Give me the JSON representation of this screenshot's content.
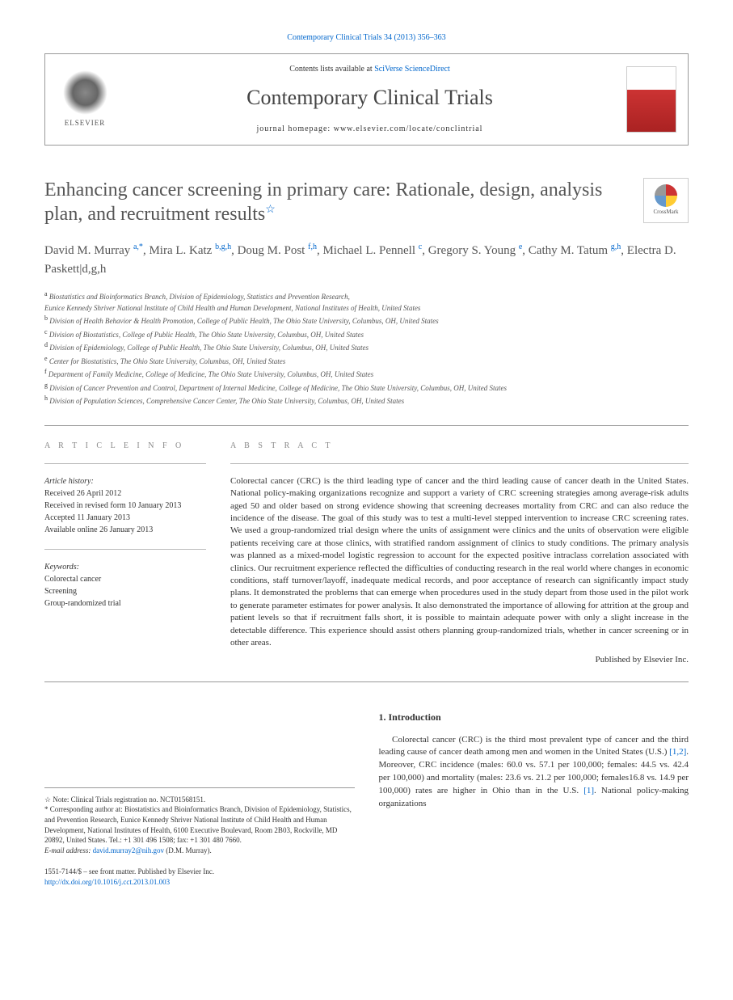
{
  "journal_ref": "Contemporary Clinical Trials 34 (2013) 356–363",
  "header": {
    "contents_prefix": "Contents lists available at ",
    "contents_link": "SciVerse ScienceDirect",
    "journal_name": "Contemporary Clinical Trials",
    "homepage_prefix": "journal homepage: ",
    "homepage_url": "www.elsevier.com/locate/conclintrial",
    "elsevier_label": "ELSEVIER"
  },
  "crossmark_label": "CrossMark",
  "title": "Enhancing cancer screening in primary care: Rationale, design, analysis plan, and recruitment results",
  "authors_html": "David M. Murray|a,*|, Mira L. Katz|b,g,h|, Doug M. Post|f,h|, Michael L. Pennell|c|, Gregory S. Young|e|, Cathy M. Tatum|g,h|, Electra D. Paskett|d,g,h",
  "affiliations": [
    {
      "sup": "a",
      "text": "Biostatistics and Bioinformatics Branch, Division of Epidemiology, Statistics and Prevention Research,\nEunice Kennedy Shriver National Institute of Child Health and Human Development, National Institutes of Health, United States"
    },
    {
      "sup": "b",
      "text": "Division of Health Behavior & Health Promotion, College of Public Health, The Ohio State University, Columbus, OH, United States"
    },
    {
      "sup": "c",
      "text": "Division of Biostatistics, College of Public Health, The Ohio State University, Columbus, OH, United States"
    },
    {
      "sup": "d",
      "text": "Division of Epidemiology, College of Public Health, The Ohio State University, Columbus, OH, United States"
    },
    {
      "sup": "e",
      "text": "Center for Biostatistics, The Ohio State University, Columbus, OH, United States"
    },
    {
      "sup": "f",
      "text": "Department of Family Medicine, College of Medicine, The Ohio State University, Columbus, OH, United States"
    },
    {
      "sup": "g",
      "text": "Division of Cancer Prevention and Control, Department of Internal Medicine, College of Medicine, The Ohio State University, Columbus, OH, United States"
    },
    {
      "sup": "h",
      "text": "Division of Population Sciences, Comprehensive Cancer Center, The Ohio State University, Columbus, OH, United States"
    }
  ],
  "article_info": {
    "label": "A R T I C L E   I N F O",
    "history_label": "Article history:",
    "history": [
      "Received 26 April 2012",
      "Received in revised form 10 January 2013",
      "Accepted 11 January 2013",
      "Available online 26 January 2013"
    ],
    "keywords_label": "Keywords:",
    "keywords": [
      "Colorectal cancer",
      "Screening",
      "Group-randomized trial"
    ]
  },
  "abstract": {
    "label": "A B S T R A C T",
    "text": "Colorectal cancer (CRC) is the third leading type of cancer and the third leading cause of cancer death in the United States. National policy-making organizations recognize and support a variety of CRC screening strategies among average-risk adults aged 50 and older based on strong evidence showing that screening decreases mortality from CRC and can also reduce the incidence of the disease. The goal of this study was to test a multi-level stepped intervention to increase CRC screening rates. We used a group-randomized trial design where the units of assignment were clinics and the units of observation were eligible patients receiving care at those clinics, with stratified random assignment of clinics to study conditions. The primary analysis was planned as a mixed-model logistic regression to account for the expected positive intraclass correlation associated with clinics. Our recruitment experience reflected the difficulties of conducting research in the real world where changes in economic conditions, staff turnover/layoff, inadequate medical records, and poor acceptance of research can significantly impact study plans. It demonstrated the problems that can emerge when procedures used in the study depart from those used in the pilot work to generate parameter estimates for power analysis. It also demonstrated the importance of allowing for attrition at the group and patient levels so that if recruitment falls short, it is possible to maintain adequate power with only a slight increase in the detectable difference. This experience should assist others planning group-randomized trials, whether in cancer screening or in other areas.",
    "published_by": "Published by Elsevier Inc."
  },
  "footnotes": {
    "note": "Note: Clinical Trials registration no. NCT01568151.",
    "corresponding": "Corresponding author at: Biostatistics and Bioinformatics Branch, Division of Epidemiology, Statistics, and Prevention Research, Eunice Kennedy Shriver National Institute of Child Health and Human Development, National Institutes of Health, 6100 Executive Boulevard, Room 2B03, Rockville, MD 20892, United States. Tel.: +1 301 496 1508; fax: +1 301 480 7660.",
    "email_label": "E-mail address:",
    "email": "david.murray2@nih.gov",
    "email_suffix": "(D.M. Murray)."
  },
  "front_matter": {
    "line": "1551-7144/$ – see front matter. Published by Elsevier Inc.",
    "doi": "http://dx.doi.org/10.1016/j.cct.2013.01.003"
  },
  "intro": {
    "heading": "1. Introduction",
    "text_pre": "Colorectal cancer (CRC) is the third most prevalent type of cancer and the third leading cause of cancer death among men and women in the United States (U.S.) ",
    "ref1": "[1,2]",
    "text_mid": ". Moreover, CRC incidence (males: 60.0 vs. 57.1 per 100,000; females: 44.5 vs. 42.4 per 100,000) and mortality (males: 23.6 vs. 21.2 per 100,000; females16.8 vs. 14.9 per 100,000) rates are higher in Ohio than in the U.S. ",
    "ref2": "[1]",
    "text_post": ". National policy-making organizations"
  }
}
